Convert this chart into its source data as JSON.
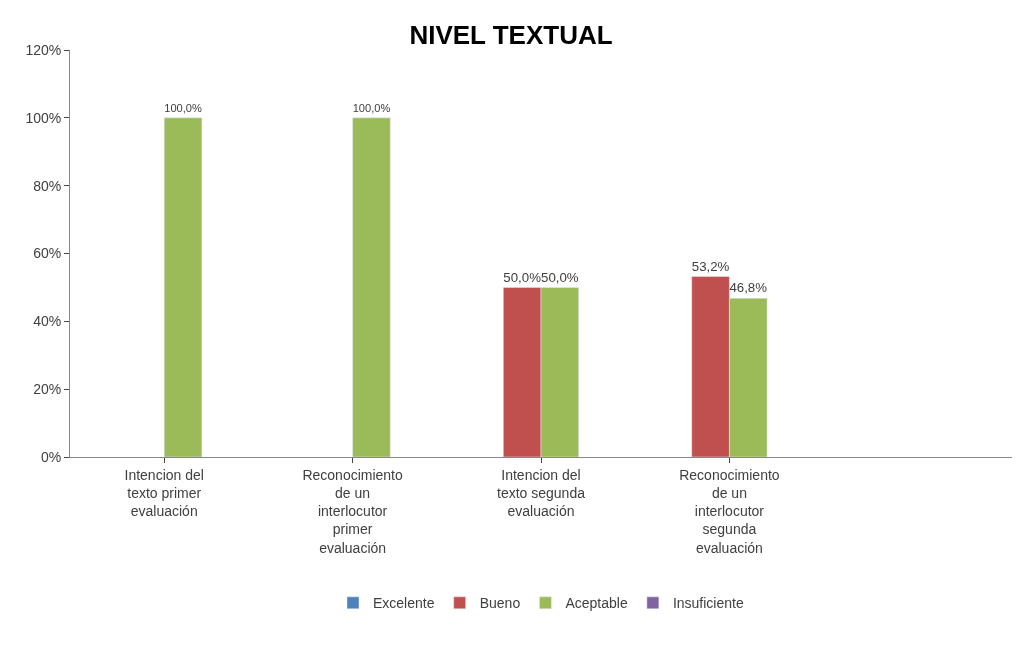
{
  "chart_data": {
    "type": "bar",
    "title": "NIVEL TEXTUAL",
    "categories": [
      "Intencion del texto primer evaluación",
      "Reconocimiento de un interlocutor primer evaluación",
      "Intencion del texto segunda evaluación",
      "Reconocimiento de un interlocutor segunda evaluación",
      null
    ],
    "series": [
      {
        "name": "Excelente",
        "color": "#4f81bd",
        "values": [
          null,
          null,
          null,
          null,
          null
        ]
      },
      {
        "name": "Bueno",
        "color": "#c0504d",
        "values": [
          null,
          null,
          50.0,
          53.2,
          null
        ],
        "value_labels": [
          null,
          null,
          "50,0%",
          "53,2%",
          null
        ]
      },
      {
        "name": "Aceptable",
        "color": "#9bbb59",
        "values": [
          100.0,
          100.0,
          50.0,
          46.8,
          null
        ],
        "value_labels": [
          "100,0%",
          "100,0%",
          "50,0%",
          "46,8%",
          null
        ]
      },
      {
        "name": "Insuficiente",
        "color": "#8064a2",
        "values": [
          null,
          null,
          null,
          null,
          null
        ]
      }
    ],
    "ylim": [
      0,
      120
    ],
    "yticks": [
      {
        "value": 0,
        "label": "0%"
      },
      {
        "value": 20,
        "label": "20%"
      },
      {
        "value": 40,
        "label": "40%"
      },
      {
        "value": 60,
        "label": "60%"
      },
      {
        "value": 80,
        "label": "80%"
      },
      {
        "value": 100,
        "label": "100%"
      },
      {
        "value": 120,
        "label": "120%"
      }
    ],
    "legend": "bottom"
  }
}
